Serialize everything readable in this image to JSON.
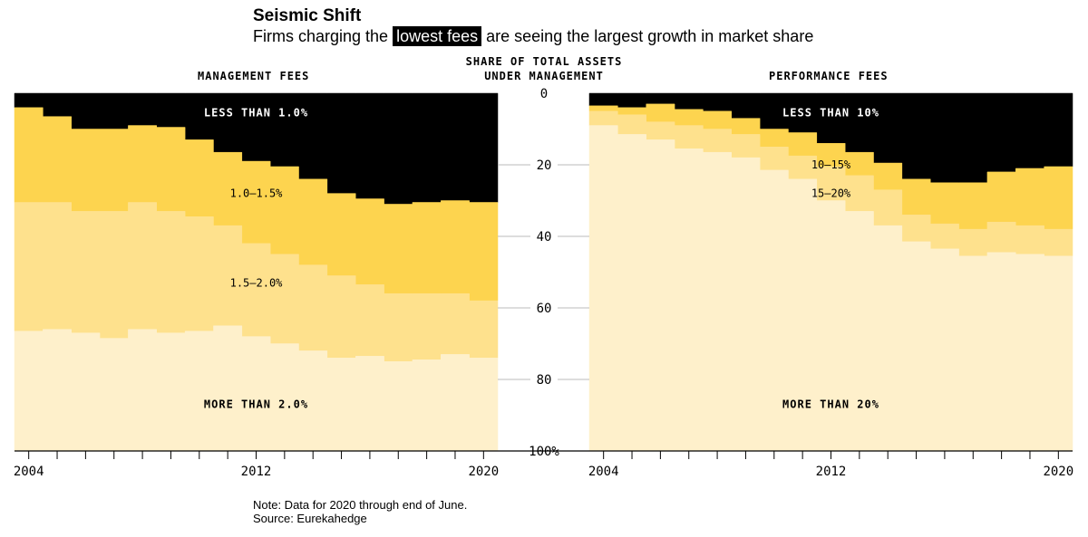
{
  "header": {
    "title": "Seismic Shift",
    "subtitle_before": "Firms charging the",
    "subtitle_highlight": "lowest fees",
    "subtitle_after": "are seeing the largest growth in market share"
  },
  "footer": {
    "note": "Note: Data for 2020 through end of June.",
    "source": "Source: Eurekahedge"
  },
  "colors": {
    "black": "#000000",
    "dark_yellow": "#FDD44F",
    "mid_yellow": "#FEE18D",
    "light_yellow": "#FEF0CB"
  },
  "chart_data": [
    {
      "type": "area",
      "stacking": "step",
      "title": "MANAGEMENT FEES",
      "ylabel": "SHARE OF TOTAL ASSETS UNDER MANAGEMENT",
      "ylim": [
        0,
        100
      ],
      "y_ticks": [
        0,
        20,
        40,
        60,
        80,
        100
      ],
      "y_tick_labels": [
        "0",
        "20",
        "40",
        "60",
        "80",
        "100%"
      ],
      "x_labels": [
        "2004",
        "2012",
        "2020"
      ],
      "x": [
        2004,
        2005,
        2006,
        2007,
        2008,
        2009,
        2010,
        2011,
        2012,
        2013,
        2014,
        2015,
        2016,
        2017,
        2018,
        2019,
        2020
      ],
      "boundaries": [
        {
          "upper": "LESS THAN 1.0%",
          "lower": "1.0–1.5%",
          "values": [
            4,
            6.5,
            10,
            10,
            9,
            9.5,
            13,
            16.5,
            19,
            20.5,
            24,
            28,
            29.5,
            31,
            30.5,
            30,
            30.5
          ]
        },
        {
          "upper": "1.0–1.5%",
          "lower": "1.5–2.0%",
          "values": [
            30.5,
            30.5,
            33,
            33,
            30.5,
            33,
            34.5,
            37,
            42,
            45,
            48,
            51,
            53.5,
            56,
            56,
            56,
            58
          ]
        },
        {
          "upper": "1.5–2.0%",
          "lower": "MORE THAN 2.0%",
          "values": [
            66.5,
            66,
            67,
            68.5,
            66,
            67,
            66.5,
            65,
            68,
            70,
            72,
            74,
            73.5,
            75,
            74.5,
            73,
            74
          ]
        }
      ],
      "series_labels": [
        "LESS THAN 1.0%",
        "1.0–1.5%",
        "1.5–2.0%",
        "MORE THAN 2.0%"
      ]
    },
    {
      "type": "area",
      "stacking": "step",
      "title": "PERFORMANCE FEES",
      "ylabel": "SHARE OF TOTAL ASSETS UNDER MANAGEMENT",
      "ylim": [
        0,
        100
      ],
      "x_labels": [
        "2004",
        "2012",
        "2020"
      ],
      "x": [
        2004,
        2005,
        2006,
        2007,
        2008,
        2009,
        2010,
        2011,
        2012,
        2013,
        2014,
        2015,
        2016,
        2017,
        2018,
        2019,
        2020
      ],
      "boundaries": [
        {
          "upper": "LESS THAN 10%",
          "lower": "10–15%",
          "values": [
            3.5,
            4,
            3,
            4.5,
            5,
            7,
            10,
            11,
            14,
            16.5,
            19.5,
            24,
            25,
            25,
            22,
            21,
            20.5
          ]
        },
        {
          "upper": "10–15%",
          "lower": "15–20%",
          "values": [
            5,
            6,
            8,
            9,
            10,
            11.5,
            15,
            17.5,
            20.5,
            23,
            27,
            34,
            36.5,
            38,
            36,
            37,
            38
          ]
        },
        {
          "upper": "15–20%",
          "lower": "MORE THAN 20%",
          "values": [
            9,
            11.5,
            13,
            15.5,
            16.5,
            18,
            21.5,
            24,
            30,
            33,
            37,
            41.5,
            43.5,
            45.5,
            44.5,
            45,
            45.5
          ]
        }
      ],
      "series_labels": [
        "LESS THAN 10%",
        "10–15%",
        "15–20%",
        "MORE THAN 20%"
      ]
    }
  ]
}
